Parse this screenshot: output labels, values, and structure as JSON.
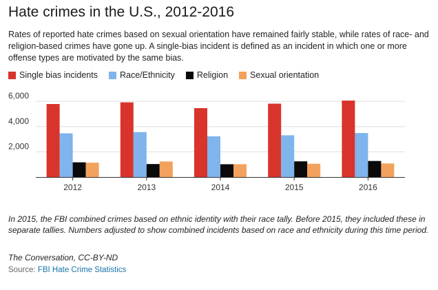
{
  "header": {
    "title": "Hate crimes in the U.S., 2012-2016",
    "subtitle": "Rates of reported hate crimes based on sexual orientation have remained fairly stable, while rates of race- and religion-based crimes have gone up. A single-bias incident is defined as an incident in which one or more offense types are motivated by the same bias."
  },
  "colors": {
    "single_bias": "#d9342b",
    "race": "#7fb4ec",
    "religion": "#0a0a0a",
    "sexual_orientation": "#f2a25c"
  },
  "chart_data": {
    "type": "bar",
    "categories": [
      "2012",
      "2013",
      "2014",
      "2015",
      "2016"
    ],
    "series": [
      {
        "name": "Single bias incidents",
        "color": "#d9342b",
        "values": [
          5790,
          5922,
          5462,
          5818,
          6063
        ]
      },
      {
        "name": "Race/Ethnicity",
        "color": "#7fb4ec",
        "values": [
          3467,
          3563,
          3227,
          3310,
          3489
        ]
      },
      {
        "name": "Religion",
        "color": "#0a0a0a",
        "values": [
          1166,
          1031,
          1014,
          1244,
          1273
        ]
      },
      {
        "name": "Sexual orientation",
        "color": "#f2a25c",
        "values": [
          1135,
          1233,
          1017,
          1053,
          1076
        ]
      }
    ],
    "yticks": [
      2000,
      4000,
      6000
    ],
    "ytick_labels": [
      "2,000",
      "4,000",
      "6,000"
    ],
    "ylim": [
      0,
      6500
    ],
    "grid": true,
    "legend_position": "top-left"
  },
  "footer": {
    "note": "In 2015, the FBI combined crimes based on ethnic identity with their race tally. Before 2015, they included these in separate tallies. Numbers adjusted to show combined incidents based on race and ethnicity during this time period.",
    "credit": "The Conversation, CC-BY-ND",
    "source_label": "Source:",
    "source_link": "FBI Hate Crime Statistics"
  }
}
